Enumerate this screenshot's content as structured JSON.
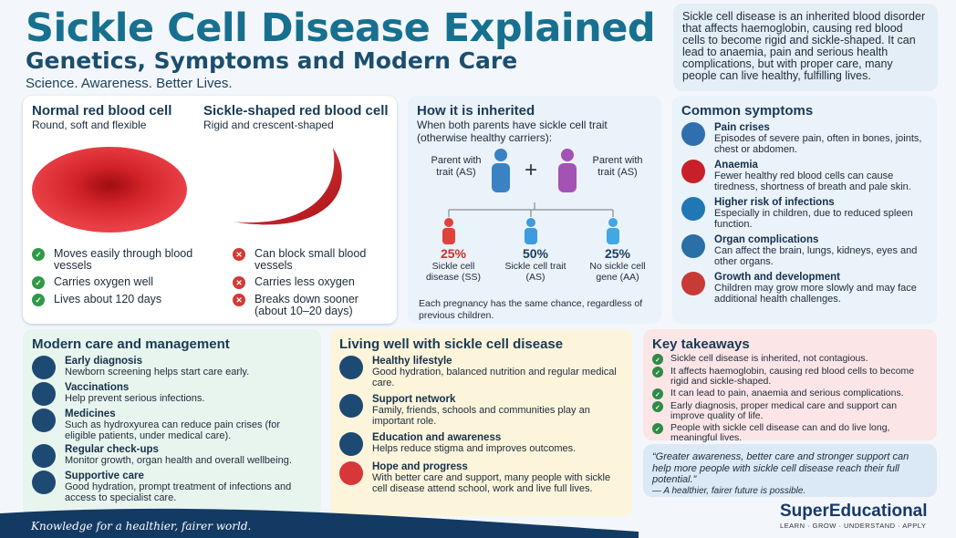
{
  "header": {
    "title": "Sickle Cell Disease Explained",
    "subtitle": "Genetics, Symptoms and Modern Care",
    "tagline": "Science. Awareness. Better Lives."
  },
  "intro": "Sickle cell disease is an inherited blood disorder that affects haemoglobin, causing red blood cells to become rigid and sickle-shaped. It can lead to anaemia, pain and serious health complications, but with proper care, many people can live healthy, fulfilling lives.",
  "cells": {
    "normal": {
      "title": "Normal red blood cell",
      "subtitle": "Round, soft and flexible",
      "points": [
        "Moves easily through blood vessels",
        "Carries oxygen well",
        "Lives about 120 days"
      ]
    },
    "sickle": {
      "title": "Sickle-shaped red blood cell",
      "subtitle": "Rigid and crescent-shaped",
      "points": [
        "Can block small blood vessels",
        "Carries less oxygen",
        "Breaks down sooner (about 10–20 days)"
      ]
    }
  },
  "inheritance": {
    "title": "How it is inherited",
    "intro": "When both parents have sickle cell trait (otherwise healthy carriers):",
    "parents": [
      "Parent with trait (AS)",
      "Parent with trait (AS)"
    ],
    "plus": "+",
    "outcomes": [
      {
        "percent": "25%",
        "label": "Sickle cell disease (SS)"
      },
      {
        "percent": "50%",
        "label": "Sickle cell trait (AS)"
      },
      {
        "percent": "25%",
        "label": "No sickle cell gene (AA)"
      }
    ],
    "note": "Each pregnancy has the same chance, regardless of previous children."
  },
  "symptoms": {
    "title": "Common symptoms",
    "items": [
      {
        "title": "Pain crises",
        "text": "Episodes of severe pain, often in bones, joints, chest or abdomen."
      },
      {
        "title": "Anaemia",
        "text": "Fewer healthy red blood cells can cause tiredness, shortness of breath and pale skin."
      },
      {
        "title": "Higher risk of infections",
        "text": "Especially in children, due to reduced spleen function."
      },
      {
        "title": "Organ complications",
        "text": "Can affect the brain, lungs, kidneys, eyes and other organs."
      },
      {
        "title": "Growth and development",
        "text": "Children may grow more slowly and may face additional health challenges."
      }
    ]
  },
  "care": {
    "title": "Modern care and management",
    "items": [
      {
        "title": "Early diagnosis",
        "text": "Newborn screening helps start care early."
      },
      {
        "title": "Vaccinations",
        "text": "Help prevent serious infections."
      },
      {
        "title": "Medicines",
        "text": "Such as hydroxyurea can reduce pain crises (for eligible patients, under medical care)."
      },
      {
        "title": "Regular check-ups",
        "text": "Monitor growth, organ health and overall wellbeing."
      },
      {
        "title": "Supportive care",
        "text": "Good hydration, prompt treatment of infections and access to specialist care."
      }
    ]
  },
  "living": {
    "title": "Living well with sickle cell disease",
    "items": [
      {
        "title": "Healthy lifestyle",
        "text": "Good hydration, balanced nutrition and regular medical care."
      },
      {
        "title": "Support network",
        "text": "Family, friends, schools and communities play an important role."
      },
      {
        "title": "Education and awareness",
        "text": "Helps reduce stigma and improves outcomes."
      },
      {
        "title": "Hope and progress",
        "text": "With better care and support, many people with sickle cell disease attend school, work and live full lives."
      }
    ]
  },
  "takeaways": {
    "title": "Key takeaways",
    "items": [
      "Sickle cell disease is inherited, not contagious.",
      "It affects haemoglobin, causing red blood cells to become rigid and sickle-shaped.",
      "It can lead to pain, anaemia and serious complications.",
      "Early diagnosis, proper medical care and support can improve quality of life.",
      "People with sickle cell disease can and do live long, meaningful lives."
    ]
  },
  "quote": {
    "text": "“Greater awareness, better care and stronger support can help more people with sickle cell disease reach their full potential.”",
    "attribution": "— A healthier, fairer future is possible."
  },
  "brand": {
    "name": "SuperEducational",
    "tagline": "LEARN · GROW · UNDERSTAND · APPLY"
  },
  "footer": "Knowledge for a healthier, fairer world."
}
